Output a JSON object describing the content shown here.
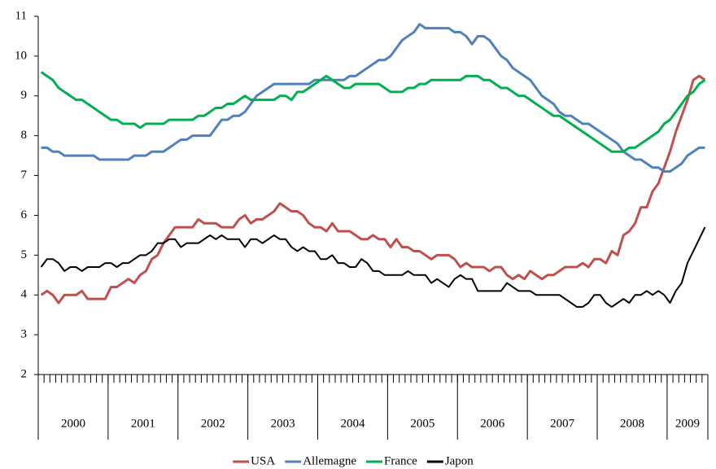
{
  "chart_data": {
    "type": "line",
    "year_labels": [
      "2000",
      "2001",
      "2002",
      "2003",
      "2004",
      "2005",
      "2006",
      "2007",
      "2008",
      "2009"
    ],
    "categories": [
      null,
      null,
      null,
      null,
      null,
      null,
      null,
      null,
      null,
      null,
      null,
      null,
      null,
      null,
      null,
      null,
      null,
      null,
      null,
      null,
      null,
      null,
      null,
      null,
      null,
      null,
      null,
      null,
      null,
      null,
      null,
      null,
      null,
      null,
      null,
      null,
      null,
      null,
      null,
      null,
      null,
      null,
      null,
      null,
      null,
      null,
      null,
      null,
      null,
      null,
      null,
      null,
      null,
      null,
      null,
      null,
      null,
      null,
      null,
      null,
      null,
      null,
      null,
      null,
      null,
      null,
      null,
      null,
      null,
      null,
      null,
      null,
      null,
      null,
      null,
      null,
      null,
      null,
      null,
      null,
      null,
      null,
      null,
      null,
      null,
      null,
      null,
      null,
      null,
      null,
      null,
      null,
      null,
      null,
      null,
      null,
      null,
      null,
      null,
      null,
      null,
      null,
      null,
      null,
      null,
      null,
      null,
      null,
      null,
      null,
      null,
      null,
      null,
      null,
      null
    ],
    "ylim": [
      2,
      11
    ],
    "yticks": [
      2,
      3,
      4,
      5,
      6,
      7,
      8,
      9,
      10,
      11
    ],
    "series": [
      {
        "name": "USA",
        "color": "#c0504d",
        "values": [
          4.0,
          4.1,
          4.0,
          3.8,
          4.0,
          4.0,
          4.0,
          4.1,
          3.9,
          3.9,
          3.9,
          3.9,
          4.2,
          4.2,
          4.3,
          4.4,
          4.3,
          4.5,
          4.6,
          4.9,
          5.0,
          5.3,
          5.5,
          5.7,
          5.7,
          5.7,
          5.7,
          5.9,
          5.8,
          5.8,
          5.8,
          5.7,
          5.7,
          5.7,
          5.9,
          6.0,
          5.8,
          5.9,
          5.9,
          6.0,
          6.1,
          6.3,
          6.2,
          6.1,
          6.1,
          6.0,
          5.8,
          5.7,
          5.7,
          5.6,
          5.8,
          5.6,
          5.6,
          5.6,
          5.5,
          5.4,
          5.4,
          5.5,
          5.4,
          5.4,
          5.2,
          5.4,
          5.2,
          5.2,
          5.1,
          5.1,
          5.0,
          4.9,
          5.0,
          5.0,
          5.0,
          4.9,
          4.7,
          4.8,
          4.7,
          4.7,
          4.7,
          4.6,
          4.7,
          4.7,
          4.5,
          4.4,
          4.5,
          4.4,
          4.6,
          4.5,
          4.4,
          4.5,
          4.5,
          4.6,
          4.7,
          4.7,
          4.7,
          4.8,
          4.7,
          4.9,
          4.9,
          4.8,
          5.1,
          5.0,
          5.5,
          5.6,
          5.8,
          6.2,
          6.2,
          6.6,
          6.8,
          7.2,
          7.6,
          8.1,
          8.5,
          8.9,
          9.4,
          9.5,
          9.4
        ]
      },
      {
        "name": "Allemagne",
        "color": "#4f81bd",
        "values": [
          7.7,
          7.7,
          7.6,
          7.6,
          7.5,
          7.5,
          7.5,
          7.5,
          7.5,
          7.5,
          7.4,
          7.4,
          7.4,
          7.4,
          7.4,
          7.4,
          7.5,
          7.5,
          7.5,
          7.6,
          7.6,
          7.6,
          7.7,
          7.8,
          7.9,
          7.9,
          8.0,
          8.0,
          8.0,
          8.0,
          8.2,
          8.4,
          8.4,
          8.5,
          8.5,
          8.6,
          8.8,
          9.0,
          9.1,
          9.2,
          9.3,
          9.3,
          9.3,
          9.3,
          9.3,
          9.3,
          9.3,
          9.4,
          9.4,
          9.4,
          9.4,
          9.4,
          9.4,
          9.5,
          9.5,
          9.6,
          9.7,
          9.8,
          9.9,
          9.9,
          10.0,
          10.2,
          10.4,
          10.5,
          10.6,
          10.8,
          10.7,
          10.7,
          10.7,
          10.7,
          10.7,
          10.6,
          10.6,
          10.5,
          10.3,
          10.5,
          10.5,
          10.4,
          10.2,
          10.0,
          9.9,
          9.7,
          9.6,
          9.5,
          9.4,
          9.2,
          9.0,
          8.9,
          8.8,
          8.6,
          8.5,
          8.5,
          8.4,
          8.3,
          8.3,
          8.2,
          8.1,
          8.0,
          7.9,
          7.8,
          7.6,
          7.5,
          7.4,
          7.4,
          7.3,
          7.2,
          7.2,
          7.1,
          7.1,
          7.2,
          7.3,
          7.5,
          7.6,
          7.7,
          7.7
        ]
      },
      {
        "name": "France",
        "color": "#00b050",
        "values": [
          9.6,
          9.5,
          9.4,
          9.2,
          9.1,
          9.0,
          8.9,
          8.9,
          8.8,
          8.7,
          8.6,
          8.5,
          8.4,
          8.4,
          8.3,
          8.3,
          8.3,
          8.2,
          8.3,
          8.3,
          8.3,
          8.3,
          8.4,
          8.4,
          8.4,
          8.4,
          8.4,
          8.5,
          8.5,
          8.6,
          8.7,
          8.7,
          8.8,
          8.8,
          8.9,
          9.0,
          8.9,
          8.9,
          8.9,
          8.9,
          8.9,
          9.0,
          9.0,
          8.9,
          9.1,
          9.1,
          9.2,
          9.3,
          9.4,
          9.5,
          9.4,
          9.3,
          9.2,
          9.2,
          9.3,
          9.3,
          9.3,
          9.3,
          9.3,
          9.2,
          9.1,
          9.1,
          9.1,
          9.2,
          9.2,
          9.3,
          9.3,
          9.4,
          9.4,
          9.4,
          9.4,
          9.4,
          9.4,
          9.5,
          9.5,
          9.5,
          9.4,
          9.4,
          9.3,
          9.2,
          9.2,
          9.1,
          9.0,
          9.0,
          8.9,
          8.8,
          8.7,
          8.6,
          8.5,
          8.5,
          8.4,
          8.3,
          8.2,
          8.1,
          8.0,
          7.9,
          7.8,
          7.7,
          7.6,
          7.6,
          7.6,
          7.7,
          7.7,
          7.8,
          7.9,
          8.0,
          8.1,
          8.3,
          8.4,
          8.6,
          8.8,
          9.0,
          9.1,
          9.3,
          9.4
        ]
      },
      {
        "name": "Japon",
        "color": "#000000",
        "values": [
          4.7,
          4.9,
          4.9,
          4.8,
          4.6,
          4.7,
          4.7,
          4.6,
          4.7,
          4.7,
          4.7,
          4.8,
          4.8,
          4.7,
          4.8,
          4.8,
          4.9,
          5.0,
          5.0,
          5.1,
          5.3,
          5.3,
          5.4,
          5.4,
          5.2,
          5.3,
          5.3,
          5.3,
          5.4,
          5.5,
          5.4,
          5.5,
          5.4,
          5.4,
          5.4,
          5.2,
          5.4,
          5.4,
          5.3,
          5.4,
          5.5,
          5.4,
          5.4,
          5.2,
          5.1,
          5.2,
          5.1,
          5.1,
          4.9,
          4.9,
          5.0,
          4.8,
          4.8,
          4.7,
          4.7,
          4.9,
          4.8,
          4.6,
          4.6,
          4.5,
          4.5,
          4.5,
          4.5,
          4.6,
          4.5,
          4.5,
          4.5,
          4.3,
          4.4,
          4.3,
          4.2,
          4.4,
          4.5,
          4.4,
          4.4,
          4.1,
          4.1,
          4.1,
          4.1,
          4.1,
          4.3,
          4.2,
          4.1,
          4.1,
          4.1,
          4.0,
          4.0,
          4.0,
          4.0,
          4.0,
          3.9,
          3.8,
          3.7,
          3.7,
          3.8,
          4.0,
          4.0,
          3.8,
          3.7,
          3.8,
          3.9,
          3.8,
          4.0,
          4.0,
          4.1,
          4.0,
          4.1,
          4.0,
          3.8,
          4.1,
          4.3,
          4.8,
          5.1,
          5.4,
          5.7
        ]
      }
    ]
  }
}
